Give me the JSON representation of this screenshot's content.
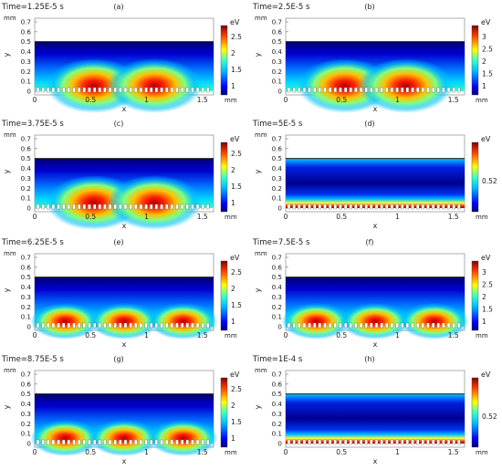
{
  "figure": {
    "panels": [
      {
        "label": "(a)",
        "time": "Time=1.25E-5 s",
        "ticks": [
          "2.5",
          "2",
          "1.5",
          "1"
        ],
        "pattern": "two-lobes",
        "hot_color": "#b00000"
      },
      {
        "label": "(b)",
        "time": "Time=2.5E-5 s",
        "ticks": [
          "3",
          "2.5",
          "2",
          "1.5",
          "1"
        ],
        "pattern": "two-lobes",
        "hot_color": "#c00000"
      },
      {
        "label": "(c)",
        "time": "Time=3.75E-5 s",
        "ticks": [
          "2.5",
          "2",
          "1.5",
          "1"
        ],
        "pattern": "two-lobes",
        "hot_color": "#b00000"
      },
      {
        "label": "(d)",
        "time": "Time=5E-5 s",
        "ticks": [
          "0.52"
        ],
        "pattern": "uniform",
        "hot_color": "#e02000"
      },
      {
        "label": "(e)",
        "time": "Time=6.25E-5 s",
        "ticks": [
          "2.5",
          "2",
          "1.5",
          "1"
        ],
        "pattern": "three-lobes",
        "hot_color": "#b00000"
      },
      {
        "label": "(f)",
        "time": "Time=7.5E-5 s",
        "ticks": [
          "3",
          "2.5",
          "2",
          "1.5",
          "1"
        ],
        "pattern": "three-lobes",
        "hot_color": "#c00000"
      },
      {
        "label": "(g)",
        "time": "Time=8.75E-5 s",
        "ticks": [
          "2.5",
          "2",
          "1.5",
          "1"
        ],
        "pattern": "three-lobes",
        "hot_color": "#b00000"
      },
      {
        "label": "(h)",
        "time": "Time=1E-4 s",
        "ticks": [
          "0.52"
        ],
        "pattern": "uniform",
        "hot_color": "#e02000"
      }
    ],
    "axes": {
      "unit_y": "mm",
      "unit_x": "mm",
      "xlabel": "x",
      "ylabel": "y",
      "colorbar_unit": "eV",
      "y_ticks": [
        "0.7",
        "0.6",
        "0.5",
        "0.4",
        "0.3",
        "0.2",
        "0.1",
        "0"
      ],
      "x_ticks": [
        "0",
        "0.5",
        "1",
        "1.5"
      ],
      "y_range": [
        0,
        0.7
      ],
      "x_range": [
        0,
        1.6
      ]
    },
    "colors": {
      "cold": "#00007f",
      "cool": "#0064ff",
      "mid": "#00e5ff",
      "warm": "#ffff00",
      "hot": "#ff3000"
    }
  }
}
